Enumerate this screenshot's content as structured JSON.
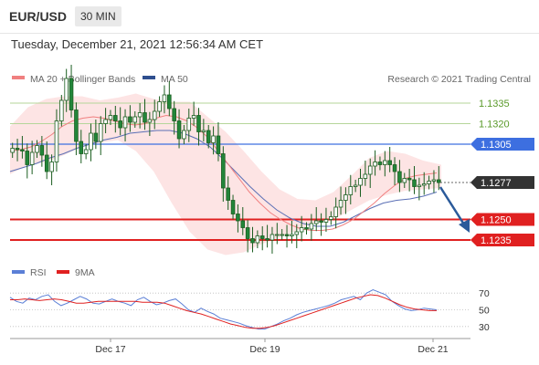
{
  "header": {
    "symbol": "EUR/USD",
    "timeframe": "30 MIN",
    "datetime": "Tuesday, December 21, 2021 12:56:34 AM CET"
  },
  "legend": {
    "ma20_label": "MA 20 + Bollinger Bands",
    "ma50_label": "MA 50",
    "credit": "Research © 2021 Trading Central",
    "rsi_label": "RSI",
    "rsi_ma_label": "9MA"
  },
  "colors": {
    "candle": "#22863a",
    "candle_dark": "#1b5e20",
    "bb_fill": "#fde4e4",
    "ma20": "#f08080",
    "ma50": "#5a6fb5",
    "blue_level": "#3d6fe0",
    "red_level": "#e02020",
    "green_level": "#b5d69a",
    "arrow": "#2a5a9a",
    "rsi": "#5b7fd6",
    "rsi_ma": "#e02020"
  },
  "chart_data": [
    {
      "type": "candlestick",
      "instrument": "EUR/USD",
      "x_labels": [
        "Dec 17",
        "Dec 19",
        "Dec 21"
      ],
      "ylim": [
        1.1225,
        1.1345
      ],
      "price_levels": [
        {
          "value": 1.1335,
          "label": "1.1335",
          "style": "green-line"
        },
        {
          "value": 1.132,
          "label": "1.1320",
          "style": "green-line"
        },
        {
          "value": 1.1305,
          "label": "1.1305",
          "style": "blue-resistance"
        },
        {
          "value": 1.1277,
          "label": "1.1277",
          "style": "current-price"
        },
        {
          "value": 1.125,
          "label": "1.1250",
          "style": "red-support"
        },
        {
          "value": 1.1235,
          "label": "1.1235",
          "style": "red-support"
        }
      ],
      "close": [
        1.1302,
        1.1301,
        1.13,
        1.129,
        1.1299,
        1.1304,
        1.1297,
        1.1285,
        1.1292,
        1.1322,
        1.1337,
        1.1353,
        1.133,
        1.1307,
        1.1298,
        1.1301,
        1.1313,
        1.1307,
        1.132,
        1.1323,
        1.1326,
        1.1322,
        1.1317,
        1.1325,
        1.1321,
        1.1325,
        1.1328,
        1.1321,
        1.1323,
        1.1329,
        1.1336,
        1.1341,
        1.1331,
        1.1322,
        1.1309,
        1.1315,
        1.1324,
        1.1326,
        1.1314,
        1.1315,
        1.1306,
        1.1311,
        1.1298,
        1.1273,
        1.1264,
        1.1254,
        1.1249,
        1.1244,
        1.1236,
        1.1233,
        1.1238,
        1.1236,
        1.1235,
        1.1239,
        1.1239,
        1.1239,
        1.1238,
        1.1239,
        1.1241,
        1.1244,
        1.1243,
        1.1247,
        1.1249,
        1.1248,
        1.125,
        1.1252,
        1.1259,
        1.1264,
        1.1268,
        1.1274,
        1.1275,
        1.128,
        1.1283,
        1.1289,
        1.1292,
        1.129,
        1.1293,
        1.129,
        1.1285,
        1.1277,
        1.128,
        1.1279,
        1.1274,
        1.1275,
        1.1276,
        1.1278,
        1.1279,
        1.1277
      ],
      "ma20": [
        1.13,
        1.1301,
        1.1303,
        1.1307,
        1.1312,
        1.1318,
        1.1322,
        1.1324,
        1.1325,
        1.1324,
        1.1322,
        1.132,
        1.1319,
        1.132,
        1.1324,
        1.1326,
        1.1325,
        1.1322,
        1.1317,
        1.131,
        1.13,
        1.129,
        1.128,
        1.127,
        1.1262,
        1.1255,
        1.125,
        1.1246,
        1.1243,
        1.1242,
        1.1242,
        1.1243,
        1.1246,
        1.125,
        1.1256,
        1.1262,
        1.1269,
        1.1275,
        1.128,
        1.1282,
        1.1283,
        1.1284
      ],
      "ma50": [
        1.1285,
        1.1288,
        1.1291,
        1.1295,
        1.1298,
        1.1302,
        1.1305,
        1.1308,
        1.131,
        1.1313,
        1.1314,
        1.1315,
        1.1315,
        1.1313,
        1.1309,
        1.1303,
        1.1294,
        1.1284,
        1.1274,
        1.1265,
        1.1257,
        1.1251,
        1.1247,
        1.1245,
        1.1245,
        1.1248,
        1.1253,
        1.1258,
        1.1262,
        1.1264,
        1.1265,
        1.1267,
        1.127
      ],
      "bb_upper": [
        1.1318,
        1.1332,
        1.1338,
        1.134,
        1.134,
        1.1337,
        1.1339,
        1.1342,
        1.1338,
        1.1336,
        1.1336,
        1.1325,
        1.1314,
        1.13,
        1.1285,
        1.1272,
        1.1265,
        1.1264,
        1.127,
        1.1282,
        1.1295,
        1.13,
        1.1298,
        1.1293,
        1.129
      ],
      "bb_lower": [
        1.1283,
        1.129,
        1.1292,
        1.1297,
        1.1303,
        1.1306,
        1.1308,
        1.13,
        1.1285,
        1.1262,
        1.1241,
        1.1228,
        1.1224,
        1.1226,
        1.1232,
        1.1237,
        1.1242,
        1.1248,
        1.125,
        1.1257,
        1.1264,
        1.1268,
        1.1271,
        1.1272,
        1.1273
      ]
    },
    {
      "type": "line",
      "name": "RSI",
      "ylim": [
        20,
        80
      ],
      "y_ticks": [
        70,
        50,
        30
      ],
      "series": [
        {
          "name": "RSI",
          "values": [
            65,
            60,
            58,
            64,
            62,
            66,
            68,
            60,
            55,
            58,
            62,
            66,
            63,
            58,
            57,
            60,
            63,
            60,
            58,
            55,
            62,
            65,
            60,
            56,
            58,
            61,
            63,
            57,
            50,
            47,
            52,
            48,
            45,
            40,
            38,
            36,
            34,
            31,
            29,
            27,
            27,
            30,
            33,
            37,
            40,
            44,
            47,
            49,
            51,
            53,
            55,
            58,
            62,
            64,
            66,
            62,
            70,
            74,
            71,
            68,
            60,
            55,
            51,
            49,
            50,
            52,
            51,
            50
          ]
        },
        {
          "name": "9MA",
          "values": [
            62,
            62,
            63,
            62,
            61,
            62,
            63,
            62,
            60,
            58,
            58,
            59,
            60,
            60,
            60,
            60,
            60,
            60,
            59,
            59,
            59,
            58,
            55,
            52,
            49,
            47,
            45,
            42,
            39,
            36,
            33,
            31,
            29,
            28,
            28,
            29,
            31,
            34,
            37,
            40,
            43,
            46,
            49,
            52,
            55,
            58,
            61,
            64,
            66,
            68,
            67,
            64,
            60,
            56,
            53,
            51,
            50,
            49,
            49
          ]
        }
      ]
    }
  ]
}
